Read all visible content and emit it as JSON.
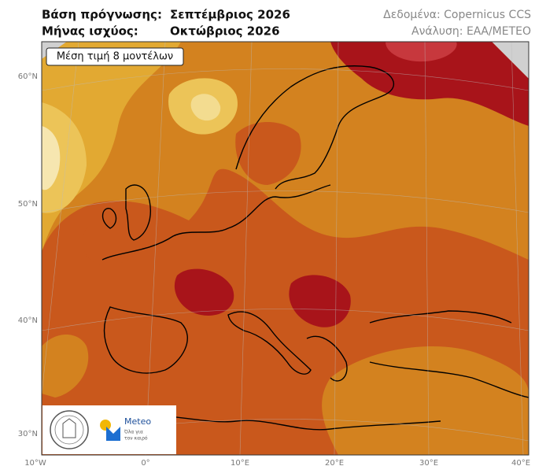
{
  "header": {
    "base_label": "Βάση πρόγνωσης:",
    "base_value": "Σεπτέμβριος 2026",
    "valid_label": "Μήνας ισχύος:",
    "valid_value": "Οκτώβριος 2026",
    "source": "Δεδομένα: Copernicus CCS",
    "analysis": "Ανάλυση: ΕΑΑ/METEO"
  },
  "map": {
    "box_label": "Μέση τιμή 8 μοντέλων",
    "lat_labels": [
      "60°N",
      "50°N",
      "40°N",
      "30°N"
    ],
    "lon_labels": [
      "10°W",
      "0°",
      "10°E",
      "20°E",
      "30°E",
      "40°E"
    ]
  },
  "logo": {
    "name": "Meteo",
    "tagline_1": "Όλα για",
    "tagline_2": "τον καιρό"
  }
}
